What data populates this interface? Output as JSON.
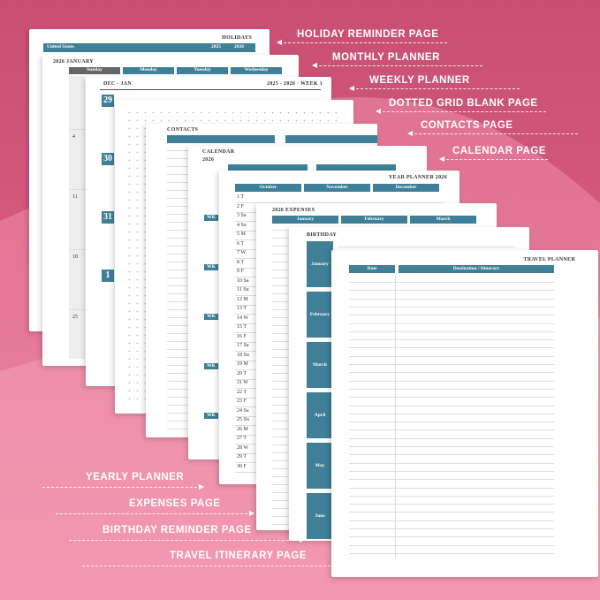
{
  "labels_right": [
    "HOLIDAY REMINDER PAGE",
    "MONTHLY PLANNER",
    "WEEKLY PLANNER",
    "DOTTED GRID BLANK PAGE",
    "CONTACTS PAGE",
    "CALENDAR PAGE"
  ],
  "labels_left": [
    "YEARLY PLANNER",
    "EXPENSES PAGE",
    "BIRTHDAY REMINDER PAGE",
    "TRAVEL ITINERARY PAGE"
  ],
  "holiday": {
    "title": "HOLIDAYS",
    "country": "United States",
    "years": [
      "2025",
      "2026"
    ]
  },
  "monthly": {
    "title": "2026 JANUARY",
    "days": [
      "Sunday",
      "Monday",
      "Tuesday",
      "Wednesday"
    ],
    "dates": [
      "4",
      "11",
      "18",
      "25"
    ]
  },
  "weekly": {
    "title": "DEC - JAN",
    "week": "2025 - 2026 · WEEK 1",
    "dates": [
      "29",
      "30",
      "31",
      "1"
    ]
  },
  "contacts": {
    "title": "CONTACTS"
  },
  "calendar": {
    "title": "CALENDAR",
    "year": "2026",
    "week_label": "WK"
  },
  "year_planner": {
    "title": "YEAR PLANNER 2026",
    "months": [
      "October",
      "November",
      "December"
    ],
    "days": [
      "1 T",
      "2 F",
      "3 Sa",
      "4 Su",
      "5 M",
      "6 T",
      "7 W",
      "8 T",
      "9 F",
      "10 Sa",
      "11 Su",
      "12 M",
      "13 T",
      "14 W",
      "15 T",
      "16 F",
      "17 Sa",
      "18 Su",
      "19 M",
      "20 T",
      "21 W",
      "22 T",
      "23 F",
      "24 Sa",
      "25 Su",
      "26 M",
      "27 T",
      "28 W",
      "29 T",
      "30 F"
    ]
  },
  "expenses": {
    "title": "2026 EXPENSES",
    "months": [
      "January",
      "February",
      "March"
    ]
  },
  "birthday": {
    "title": "BIRTHDAY",
    "months": [
      "January",
      "February",
      "March",
      "April",
      "May",
      "June"
    ]
  },
  "travel": {
    "title": "TRAVEL PLANNER",
    "columns": [
      "Date",
      "Destination / Itinerary"
    ]
  }
}
